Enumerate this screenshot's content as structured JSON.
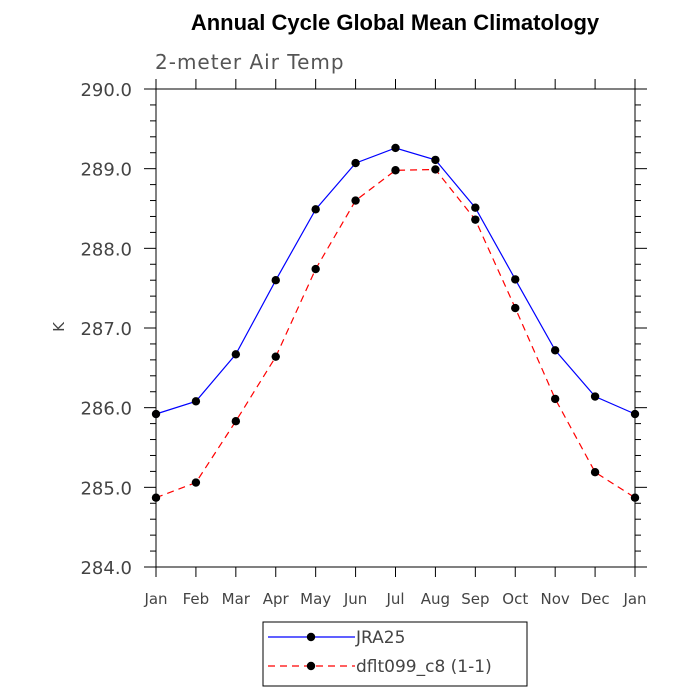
{
  "chart_data": {
    "type": "line",
    "title": "Annual Cycle Global Mean Climatology",
    "subtitle": "2-meter Air Temp",
    "xlabel": "",
    "ylabel": "K",
    "categories": [
      "Jan",
      "Feb",
      "Mar",
      "Apr",
      "May",
      "Jun",
      "Jul",
      "Aug",
      "Sep",
      "Oct",
      "Nov",
      "Dec",
      "Jan"
    ],
    "ylim": [
      284.0,
      290.0
    ],
    "yticks": [
      "284.0",
      "285.0",
      "286.0",
      "287.0",
      "288.0",
      "289.0",
      "290.0"
    ],
    "grid": false,
    "legend_position": "bottom-center",
    "series": [
      {
        "name": "JRA25",
        "color": "#0000ff",
        "line_style": "solid",
        "marker": "filled-circle",
        "values": [
          285.92,
          286.08,
          286.67,
          287.6,
          288.49,
          289.07,
          289.26,
          289.11,
          288.51,
          287.61,
          286.72,
          286.14,
          285.92
        ]
      },
      {
        "name": "dflt099_c8 (1-1)",
        "color": "#ff0000",
        "line_style": "dashed",
        "marker": "filled-circle",
        "values": [
          284.87,
          285.06,
          285.83,
          286.64,
          287.74,
          288.6,
          288.98,
          288.99,
          288.36,
          287.25,
          286.11,
          285.19,
          284.87
        ]
      }
    ]
  }
}
